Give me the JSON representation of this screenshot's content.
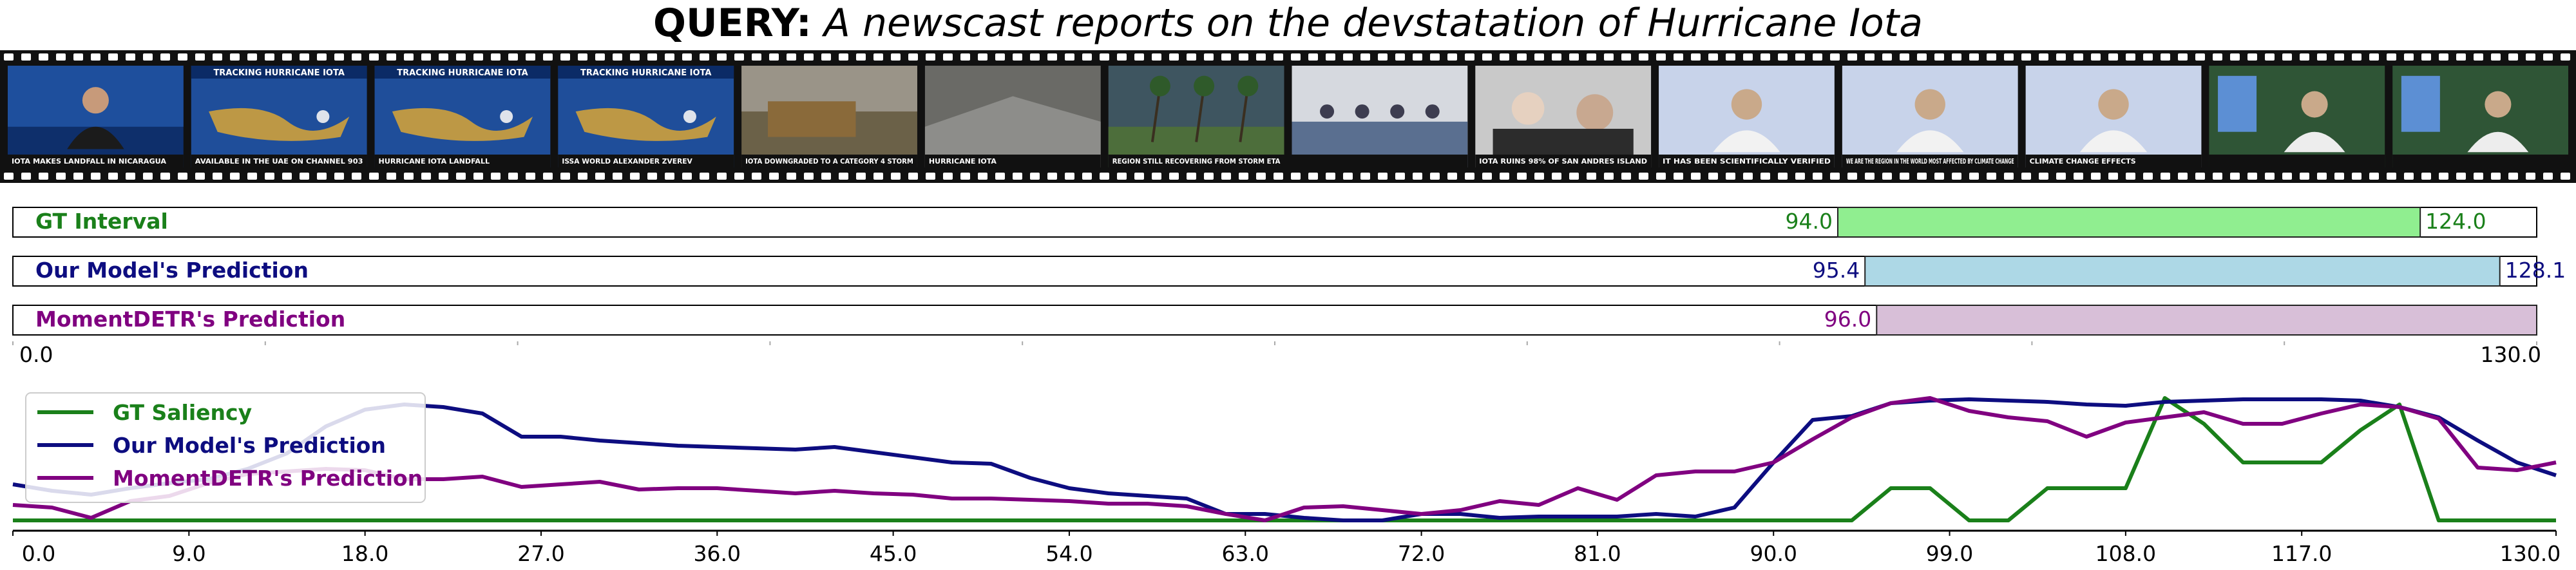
{
  "query": {
    "label": "QUERY:",
    "text": "A newscast reports on the devstatation of Hurricane Iota"
  },
  "frames": [
    {
      "caption": "IOTA MAKES LANDFALL IN NICARAGUA",
      "scene": "anchor",
      "bg": "#0e2f6b"
    },
    {
      "caption": "AVAILABLE IN THE UAE ON CHANNEL 903",
      "scene": "map",
      "title": "TRACKING HURRICANE IOTA",
      "bg": "#1f4e9a"
    },
    {
      "caption": "HURRICANE IOTA LANDFALL",
      "scene": "map",
      "title": "TRACKING HURRICANE IOTA",
      "bg": "#1f4e9a"
    },
    {
      "caption": "ISSA WORLD ALEXANDER ZVEREV",
      "scene": "map",
      "title": "TRACKING HURRICANE IOTA",
      "bg": "#1f4e9a"
    },
    {
      "caption": "IOTA DOWNGRADED TO A CATEGORY 4 STORM",
      "scene": "storm",
      "bg": "#6b6148"
    },
    {
      "caption": "HURRICANE IOTA",
      "scene": "debris",
      "bg": "#6a6a66"
    },
    {
      "caption": "REGION STILL RECOVERING FROM STORM ETA",
      "scene": "palms",
      "bg": "#3e5560"
    },
    {
      "caption": "",
      "scene": "meeting",
      "bg": "#d6d9df"
    },
    {
      "caption": "IOTA RUINS 98% OF SAN ANDRES ISLAND",
      "scene": "press",
      "bg": "#c9c9c9"
    },
    {
      "caption": "IT HAS BEEN SCIENTIFICALLY VERIFIED",
      "scene": "speaker",
      "bg": "#c8d3ea"
    },
    {
      "caption": "WE ARE THE REGION IN THE WORLD MOST AFFECTED BY CLIMATE CHANGE",
      "scene": "speaker",
      "bg": "#c8d3ea"
    },
    {
      "caption": "CLIMATE CHANGE EFFECTS",
      "scene": "speaker",
      "bg": "#c8d3ea"
    },
    {
      "caption": "",
      "scene": "podium",
      "bg": "#2f5536"
    },
    {
      "caption": "",
      "scene": "podium",
      "bg": "#2f5536"
    }
  ],
  "tracks": [
    {
      "label": "GT Interval",
      "start": 94.0,
      "end": 124.0,
      "start_label": "94.0",
      "end_label": "124.0",
      "color": "#1a801a",
      "fill": "#90ee90"
    },
    {
      "label": "Our Model's Prediction",
      "start": 95.4,
      "end": 128.1,
      "start_label": "95.4",
      "end_label": "128.1",
      "color": "#0d0d80",
      "fill": "#add8e6"
    },
    {
      "label": "MomentDETR's Prediction",
      "start": 96.0,
      "end": 130.0,
      "start_label": "96.0",
      "end_label": "",
      "color": "#800080",
      "fill": "#d8bfd8"
    }
  ],
  "interval_axis": {
    "min_label": "0.0",
    "max_label": "130.0"
  },
  "chart_data": {
    "type": "line",
    "x": [
      0,
      2,
      4,
      6,
      8,
      10,
      12,
      14,
      16,
      18,
      20,
      22,
      24,
      26,
      28,
      30,
      32,
      34,
      36,
      38,
      40,
      42,
      44,
      46,
      48,
      50,
      52,
      54,
      56,
      58,
      60,
      62,
      64,
      66,
      68,
      70,
      72,
      74,
      76,
      78,
      80,
      82,
      84,
      86,
      88,
      90,
      92,
      94,
      96,
      98,
      100,
      102,
      104,
      106,
      108,
      110,
      112,
      114,
      116,
      118,
      120,
      122,
      124,
      126,
      128,
      130
    ],
    "series": [
      {
        "name": "GT Saliency",
        "color": "#1a801a",
        "values": [
          0.05,
          0.05,
          0.05,
          0.05,
          0.05,
          0.05,
          0.05,
          0.05,
          0.05,
          0.05,
          0.05,
          0.05,
          0.05,
          0.05,
          0.05,
          0.05,
          0.05,
          0.05,
          0.05,
          0.05,
          0.05,
          0.05,
          0.05,
          0.05,
          0.05,
          0.05,
          0.05,
          0.05,
          0.05,
          0.05,
          0.05,
          0.05,
          0.05,
          0.05,
          0.05,
          0.05,
          0.05,
          0.05,
          0.05,
          0.05,
          0.05,
          0.05,
          0.05,
          0.05,
          0.05,
          0.05,
          0.05,
          0.05,
          0.3,
          0.3,
          0.05,
          0.05,
          0.3,
          0.3,
          0.3,
          1.0,
          0.8,
          0.5,
          0.5,
          0.5,
          0.75,
          0.95,
          0.05,
          0.05,
          0.05,
          0.05
        ]
      },
      {
        "name": "Our Model's Prediction",
        "color": "#0d0d80",
        "values": [
          0.33,
          0.28,
          0.25,
          0.3,
          0.34,
          0.37,
          0.45,
          0.57,
          0.78,
          0.91,
          0.95,
          0.93,
          0.88,
          0.7,
          0.7,
          0.67,
          0.65,
          0.63,
          0.62,
          0.61,
          0.6,
          0.62,
          0.58,
          0.54,
          0.5,
          0.49,
          0.38,
          0.3,
          0.26,
          0.24,
          0.22,
          0.1,
          0.1,
          0.07,
          0.05,
          0.05,
          0.1,
          0.1,
          0.07,
          0.08,
          0.08,
          0.08,
          0.1,
          0.08,
          0.15,
          0.5,
          0.83,
          0.86,
          0.96,
          0.98,
          0.99,
          0.98,
          0.97,
          0.95,
          0.94,
          0.97,
          0.98,
          0.99,
          0.99,
          0.99,
          0.98,
          0.93,
          0.85,
          0.67,
          0.5,
          0.4
        ]
      },
      {
        "name": "MomentDETR's Prediction",
        "color": "#800080",
        "values": [
          0.17,
          0.15,
          0.07,
          0.2,
          0.24,
          0.34,
          0.41,
          0.43,
          0.45,
          0.44,
          0.37,
          0.37,
          0.39,
          0.31,
          0.33,
          0.35,
          0.29,
          0.3,
          0.3,
          0.28,
          0.26,
          0.28,
          0.26,
          0.25,
          0.22,
          0.22,
          0.21,
          0.2,
          0.18,
          0.18,
          0.16,
          0.1,
          0.05,
          0.15,
          0.16,
          0.13,
          0.1,
          0.13,
          0.2,
          0.17,
          0.3,
          0.21,
          0.4,
          0.43,
          0.43,
          0.5,
          0.68,
          0.85,
          0.96,
          1.0,
          0.9,
          0.85,
          0.82,
          0.7,
          0.81,
          0.85,
          0.89,
          0.8,
          0.8,
          0.88,
          0.95,
          0.93,
          0.84,
          0.46,
          0.44,
          0.5
        ]
      }
    ],
    "xticks": [
      "0.0",
      "9.0",
      "18.0",
      "27.0",
      "36.0",
      "45.0",
      "54.0",
      "63.0",
      "72.0",
      "81.0",
      "90.0",
      "99.0",
      "108.0",
      "117.0",
      "130.0"
    ],
    "xtick_values": [
      0,
      9,
      18,
      27,
      36,
      45,
      54,
      63,
      72,
      81,
      90,
      99,
      108,
      117,
      130
    ],
    "xlim": [
      0,
      130
    ],
    "ylim": [
      0,
      1.1
    ],
    "legend": "top-left",
    "grid": false
  }
}
